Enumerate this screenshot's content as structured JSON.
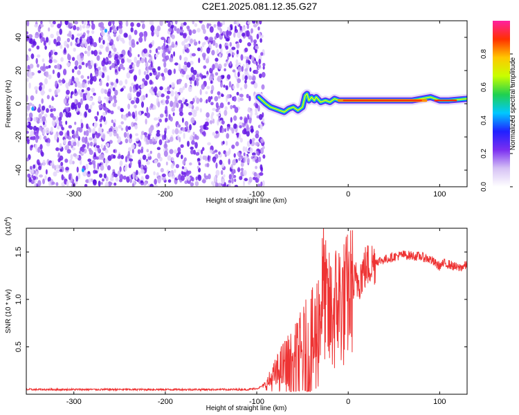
{
  "title": "C2E1.2025.081.12.35.G27",
  "chart_data": [
    {
      "type": "heatmap",
      "xlabel": "Height of straight line (km)",
      "ylabel": "Frequency (Hz)",
      "xlim": [
        -352,
        130
      ],
      "ylim": [
        -50,
        50
      ],
      "xticks": [
        -300,
        -200,
        -100,
        0,
        100
      ],
      "xtick_labels": [
        "-300",
        "-200",
        "-100",
        "0",
        "100"
      ],
      "yticks": [
        -40,
        -20,
        0,
        20,
        40
      ],
      "ytick_labels": [
        "-40",
        "-20",
        "0",
        "20",
        "40"
      ],
      "colorbar": {
        "label": "Normalized spectral amplitude",
        "range": [
          0,
          1
        ],
        "ticks": [
          0.0,
          0.2,
          0.4,
          0.6,
          0.8
        ],
        "tick_labels": [
          "0.0",
          "0.2",
          "0.4",
          "0.6",
          "0.8"
        ],
        "colors": [
          "#ffffff",
          "#d6c2f5",
          "#7b2ff0",
          "#2020ff",
          "#00c8ff",
          "#20d050",
          "#c8ff00",
          "#ffc800",
          "#ff3000",
          "#ff20a0"
        ]
      },
      "noise_region_x": [
        -352,
        -92
      ],
      "signal_trace": {
        "x": [
          -98,
          -90,
          -85,
          -80,
          -75,
          -70,
          -65,
          -60,
          -55,
          -50,
          -47,
          -45,
          -43,
          -40,
          -37,
          -35,
          -30,
          -25,
          -20,
          -15,
          -10,
          0,
          20,
          50,
          70,
          80,
          90,
          100,
          110,
          130
        ],
        "y": [
          4,
          0,
          -2,
          -3,
          -4,
          -5,
          -3,
          -2,
          -4,
          -2,
          5,
          6,
          2,
          4,
          2,
          4,
          1,
          2,
          1,
          3,
          2,
          2,
          2,
          2,
          2,
          3,
          4,
          2,
          2,
          3
        ]
      },
      "high_amplitude_band_x": [
        -10,
        85
      ]
    },
    {
      "type": "line",
      "xlabel": "Height of straight line (km)",
      "ylabel": "SNR (10 * v/v)",
      "y_multiplier_label": "(x10",
      "y_multiplier_exp": "4",
      "y_multiplier_close": ")",
      "xlim": [
        -352,
        130
      ],
      "ylim": [
        0,
        1.75
      ],
      "xticks": [
        -300,
        -200,
        -100,
        0,
        100
      ],
      "xtick_labels": [
        "-300",
        "-200",
        "-100",
        "0",
        "100"
      ],
      "yticks": [
        0.5,
        1.0,
        1.5
      ],
      "ytick_labels": [
        "0.5",
        "1.0",
        "1.5"
      ],
      "series": [
        {
          "color": "#ee3333",
          "x": [
            -352,
            -300,
            -200,
            -110,
            -100,
            -90,
            -80,
            -70,
            -60,
            -50,
            -45,
            -40,
            -35,
            -30,
            -27,
            -25,
            -20,
            -15,
            -10,
            -5,
            0,
            10,
            20,
            30,
            40,
            50,
            60,
            70,
            80,
            90,
            95,
            100,
            105,
            110,
            115,
            120,
            130
          ],
          "y": [
            0.05,
            0.05,
            0.05,
            0.05,
            0.06,
            0.1,
            0.2,
            0.3,
            0.3,
            0.4,
            0.45,
            0.45,
            0.6,
            0.9,
            1.2,
            0.95,
            0.8,
            0.9,
            1.0,
            0.95,
            1.05,
            1.2,
            1.35,
            1.4,
            1.42,
            1.45,
            1.47,
            1.46,
            1.45,
            1.42,
            1.38,
            1.35,
            1.38,
            1.37,
            1.35,
            1.33,
            1.36
          ]
        }
      ]
    }
  ]
}
